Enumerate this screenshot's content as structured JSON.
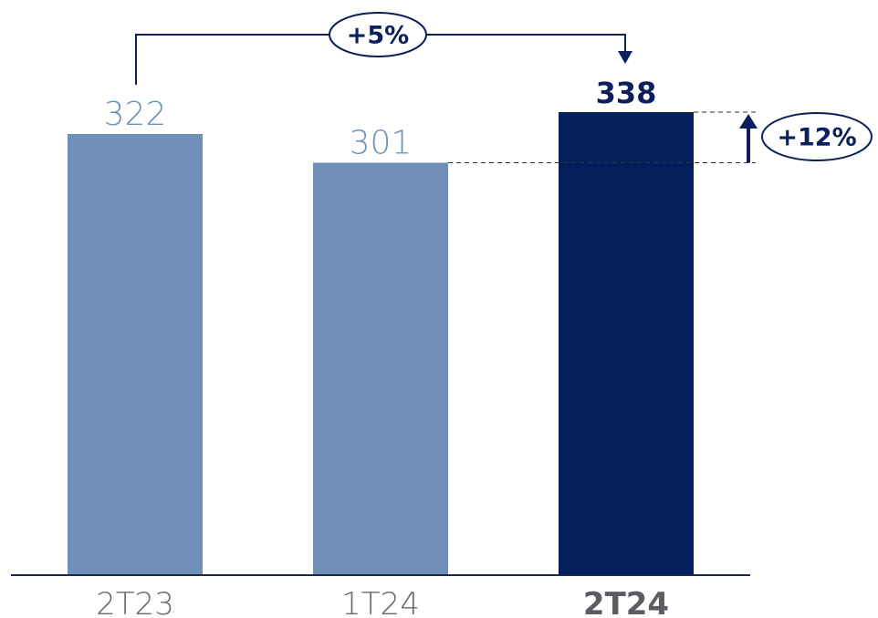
{
  "chart_data": {
    "type": "bar",
    "categories": [
      "2T23",
      "1T24",
      "2T24"
    ],
    "values": [
      322,
      301,
      338
    ],
    "value_labels": [
      "322",
      "301",
      "338"
    ],
    "highlight_index": 2,
    "ylim": [
      0,
      338
    ],
    "grid": false,
    "annotations": {
      "yoy": {
        "label": "+5%",
        "from": "2T23",
        "to": "2T24"
      },
      "qoq": {
        "label": "+12%",
        "from": "1T24",
        "to": "2T24"
      }
    },
    "colors": {
      "bar": "#6f8fb9",
      "highlight": "#03205c",
      "axis": "#1c2a4a",
      "accent": "#0b1f5c"
    }
  }
}
